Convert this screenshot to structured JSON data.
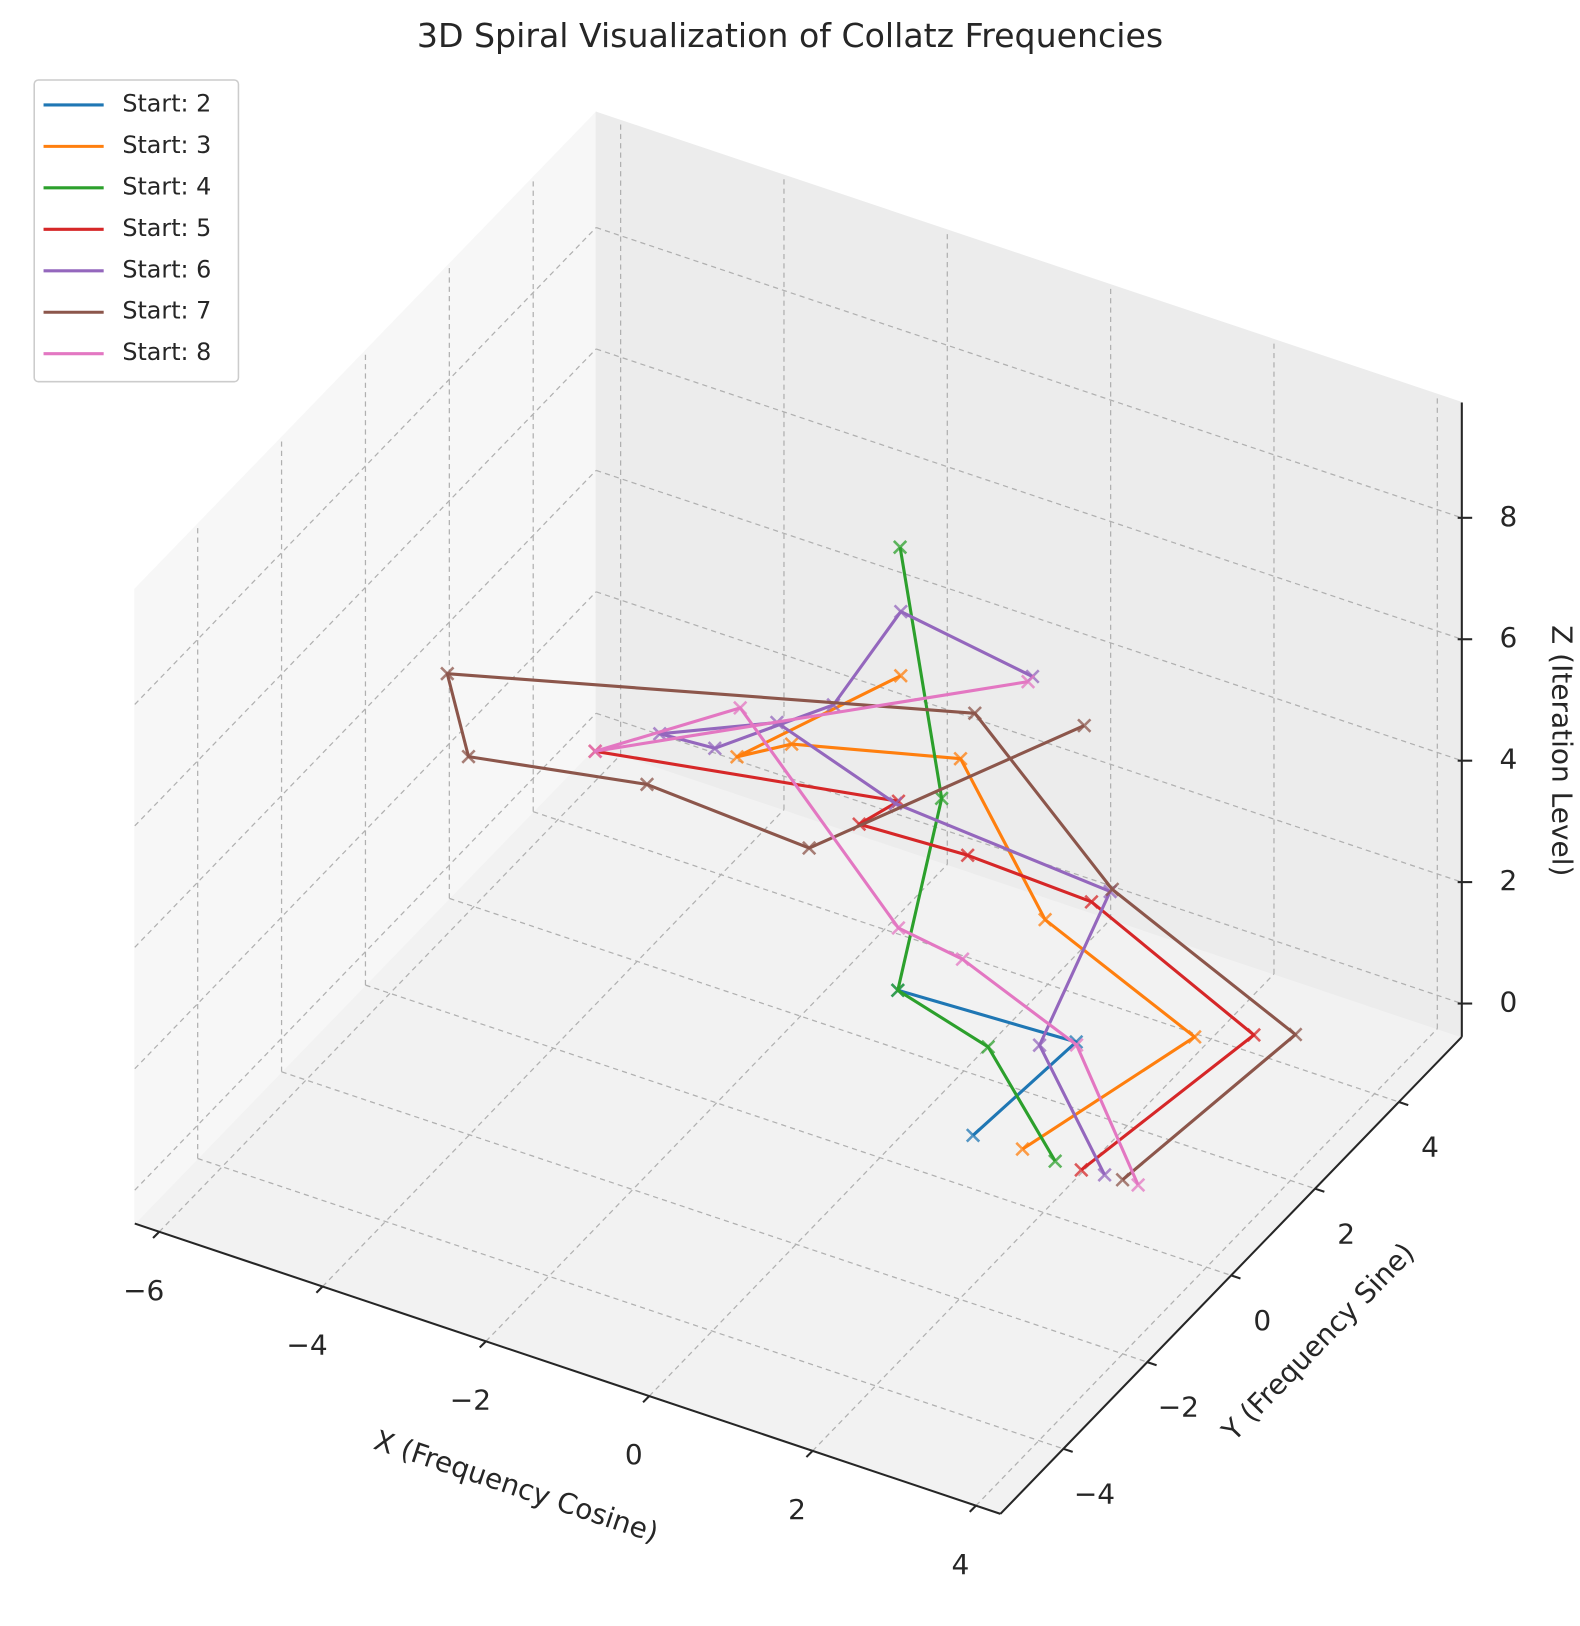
{
  "chart_data": {
    "type": "line3d",
    "title": "3D Spiral Visualization of Collatz Frequencies",
    "xlabel": "X (Frequency Cosine)",
    "ylabel": "Y (Frequency Sine)",
    "zlabel": "Z (Iteration Level)",
    "xlim": [
      -6.3,
      4.3
    ],
    "ylim": [
      -5.5,
      5.5
    ],
    "zlim": [
      -0.55,
      9.9
    ],
    "xticks": [
      {
        "value": -6,
        "label": "−6"
      },
      {
        "value": -4,
        "label": "−4"
      },
      {
        "value": -2,
        "label": "−2"
      },
      0,
      2,
      4
    ],
    "yticks": [
      {
        "value": -4,
        "label": "−4"
      },
      {
        "value": -2,
        "label": "−2"
      },
      0,
      2,
      4
    ],
    "zticks": [
      0,
      2,
      4,
      6,
      8
    ],
    "grid": true,
    "legend": "upper left",
    "marker": "x",
    "series": [
      {
        "name": "Start: 2",
        "color": "#1f77b4",
        "x": [
          0.96,
          1.35,
          -0.49
        ],
        "y": [
          0.35,
          2.05,
          1.38
        ],
        "z": [
          0,
          0.5,
          1
        ]
      },
      {
        "name": "Start: 3",
        "color": "#ff7f0e",
        "x": [
          1.54,
          2.4,
          0.24,
          -1.71,
          -3.13,
          -3.25,
          -2.19
        ],
        "y": [
          0.4,
          2.83,
          3.47,
          5.25,
          3.99,
          2.92,
          4.76
        ],
        "z": [
          0,
          0.5,
          1,
          1.5,
          2,
          2.5,
          3
        ]
      },
      {
        "name": "Start: 4",
        "color": "#2ca02c",
        "x": [
          1.95,
          0.58,
          -0.49,
          -1.53,
          -2.26
        ],
        "y": [
          0.38,
          1.45,
          1.38,
          4.45,
          4.88
        ],
        "z": [
          0,
          0.5,
          1,
          1.5,
          5
        ]
      },
      {
        "name": "Start: 5",
        "color": "#d62728",
        "x": [
          2.27,
          2.93,
          0.51,
          -0.78,
          -1.79,
          -1.36,
          -4.34
        ],
        "y": [
          0.38,
          3.21,
          4.05,
          3.61,
          2.99,
          3.09,
          1.66
        ],
        "z": [
          0,
          0.5,
          1,
          1.5,
          2,
          2.5,
          3
        ]
      },
      {
        "name": "Start: 6",
        "color": "#9467bd",
        "x": [
          2.53,
          1.04,
          0.59,
          -1.91,
          -3.46,
          -4.17,
          -3.26,
          -2.28,
          -2.22,
          -0.15
        ],
        "y": [
          0.43,
          1.78,
          4.34,
          4.09,
          4.28,
          2.87,
          2.41,
          3.33,
          4.82,
          3.93
        ],
        "z": [
          0,
          0.5,
          1,
          1.5,
          2,
          2.5,
          3,
          3.5,
          4,
          4.5
        ]
      },
      {
        "name": "Start: 7",
        "color": "#8c564b",
        "x": [
          2.74,
          3.31,
          0.59,
          -1.17,
          -6.13,
          -4.92,
          -2.75,
          -0.41,
          1.31
        ],
        "y": [
          0.45,
          3.46,
          4.39,
          4.54,
          1.62,
          -0.23,
          -0.2,
          -0.89,
          2.32
        ],
        "z": [
          0,
          0.5,
          1,
          3,
          3.5,
          4,
          4.5,
          5,
          5.5
        ]
      },
      {
        "name": "Start: 8",
        "color": "#e377c2",
        "x": [
          2.93,
          1.38,
          -0.17,
          -0.77,
          -3.93,
          -4.61,
          -0.96
        ],
        "y": [
          0.45,
          2.0,
          2.3,
          1.94,
          4.32,
          2.19,
          5.4
        ],
        "z": [
          0,
          0.5,
          1,
          1.5,
          2,
          2.5,
          3
        ]
      }
    ]
  }
}
